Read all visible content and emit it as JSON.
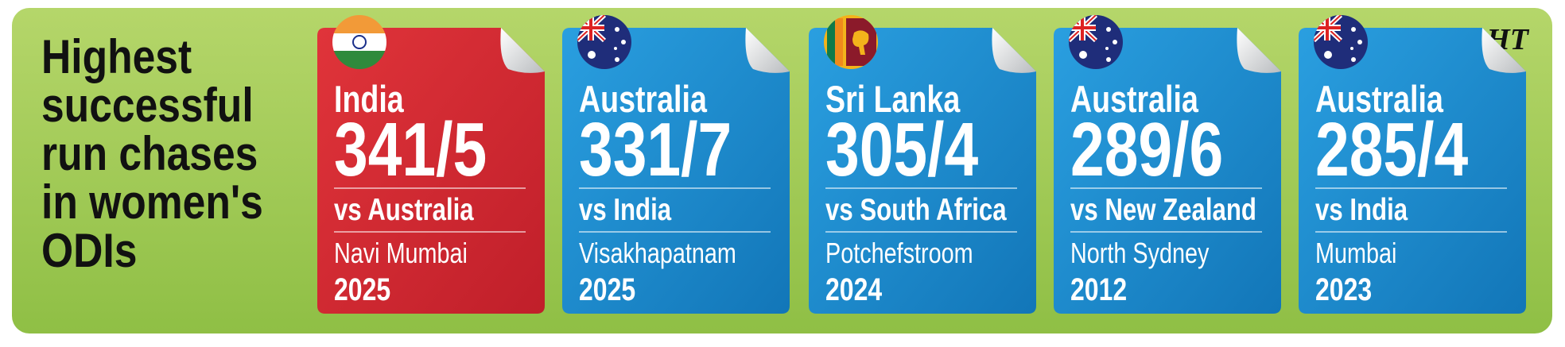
{
  "title_lines": [
    "Highest",
    "successful",
    "run chases",
    "in women's",
    "ODIs"
  ],
  "logo": "HT",
  "cards": [
    {
      "team": "India",
      "score": "341/5",
      "opponent": "vs Australia",
      "venue": "Navi Mumbai",
      "year": "2025"
    },
    {
      "team": "Australia",
      "score": "331/7",
      "opponent": "vs India",
      "venue": "Visakhapatnam",
      "year": "2025"
    },
    {
      "team": "Sri Lanka",
      "score": "305/4",
      "opponent": "vs South Africa",
      "venue": "Potchefstroom",
      "year": "2024"
    },
    {
      "team": "Australia",
      "score": "289/6",
      "opponent": "vs New Zealand",
      "venue": "North Sydney",
      "year": "2012"
    },
    {
      "team": "Australia",
      "score": "285/4",
      "opponent": "vs India",
      "venue": "Mumbai",
      "year": "2023"
    }
  ]
}
